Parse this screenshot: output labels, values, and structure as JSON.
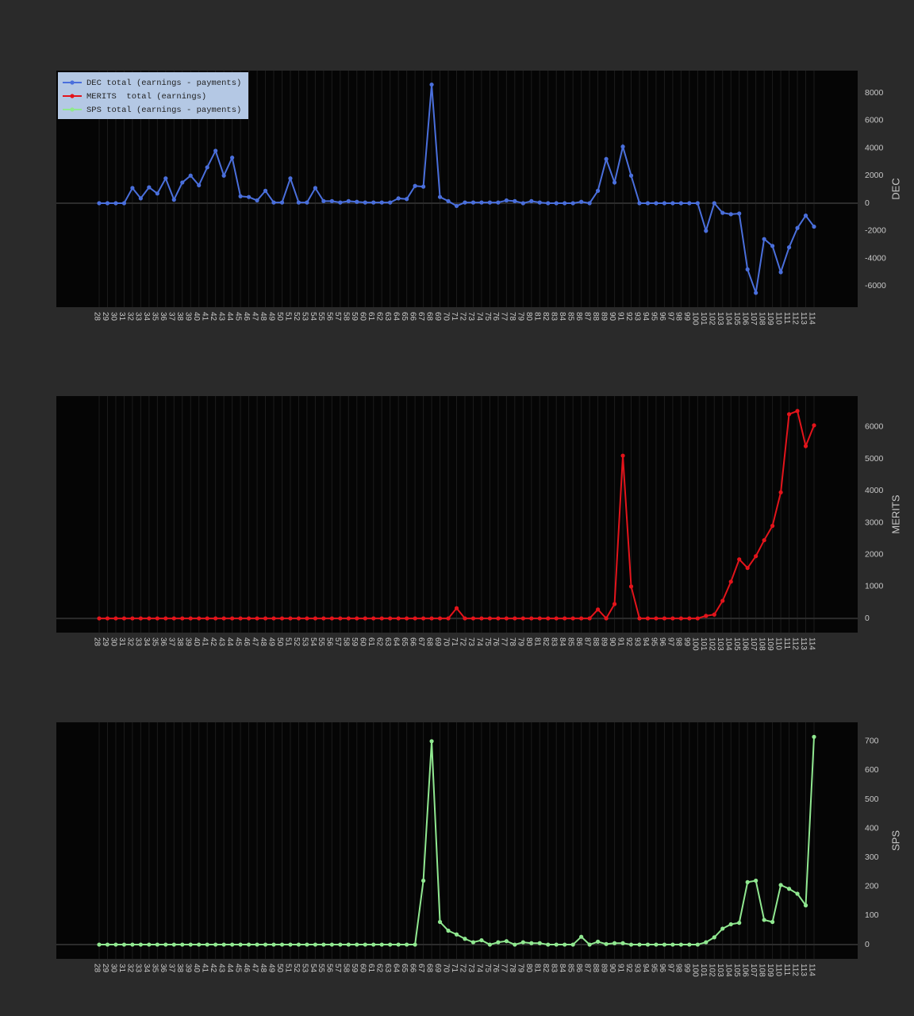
{
  "chart_data": [
    {
      "type": "line",
      "legend": "upper left",
      "y_label": "DEC",
      "categories": [
        "28",
        "29",
        "30",
        "31",
        "32",
        "33",
        "34",
        "35",
        "36",
        "37",
        "38",
        "39",
        "40",
        "41",
        "42",
        "43",
        "44",
        "45",
        "46",
        "47",
        "48",
        "49",
        "50",
        "51",
        "52",
        "53",
        "54",
        "55",
        "56",
        "57",
        "58",
        "59",
        "60",
        "61",
        "62",
        "63",
        "64",
        "65",
        "66",
        "67",
        "68",
        "69",
        "70",
        "71",
        "72",
        "73",
        "74",
        "75",
        "76",
        "77",
        "78",
        "79",
        "80",
        "81",
        "82",
        "83",
        "84",
        "85",
        "86",
        "87",
        "88",
        "89",
        "90",
        "91",
        "92",
        "93",
        "94",
        "95",
        "96",
        "97",
        "98",
        "99",
        "100",
        "101",
        "102",
        "103",
        "104",
        "105",
        "106",
        "107",
        "108",
        "109",
        "110",
        "111",
        "112",
        "113",
        "114"
      ],
      "series": [
        {
          "name": "DEC total (earnings - payments)",
          "color": "#4a6fdc",
          "values": [
            0,
            0,
            0,
            0,
            1100,
            350,
            1150,
            700,
            1800,
            250,
            1500,
            2000,
            1300,
            2600,
            3800,
            2000,
            3300,
            500,
            450,
            200,
            900,
            50,
            50,
            1800,
            50,
            50,
            1100,
            150,
            150,
            50,
            150,
            100,
            50,
            50,
            50,
            50,
            350,
            300,
            1250,
            1200,
            8600,
            450,
            150,
            -200,
            50,
            50,
            50,
            50,
            50,
            200,
            150,
            0,
            150,
            50,
            0,
            0,
            0,
            0,
            100,
            0,
            900,
            3200,
            1500,
            4100,
            2000,
            0,
            0,
            0,
            0,
            0,
            0,
            0,
            0,
            -2000,
            0,
            -700,
            -800,
            -750,
            -4800,
            -6500,
            -2600,
            -3100,
            -5000,
            -3200,
            -1800,
            -900,
            -1700
          ]
        }
      ],
      "ylim": [
        -7540,
        9611
      ],
      "yticks": [
        -6000,
        -4000,
        -2000,
        0,
        2000,
        4000,
        6000,
        8000
      ]
    },
    {
      "type": "line",
      "y_label": "MERITS",
      "categories": [
        "28",
        "29",
        "30",
        "31",
        "32",
        "33",
        "34",
        "35",
        "36",
        "37",
        "38",
        "39",
        "40",
        "41",
        "42",
        "43",
        "44",
        "45",
        "46",
        "47",
        "48",
        "49",
        "50",
        "51",
        "52",
        "53",
        "54",
        "55",
        "56",
        "57",
        "58",
        "59",
        "60",
        "61",
        "62",
        "63",
        "64",
        "65",
        "66",
        "67",
        "68",
        "69",
        "70",
        "71",
        "72",
        "73",
        "74",
        "75",
        "76",
        "77",
        "78",
        "79",
        "80",
        "81",
        "82",
        "83",
        "84",
        "85",
        "86",
        "87",
        "88",
        "89",
        "90",
        "91",
        "92",
        "93",
        "94",
        "95",
        "96",
        "97",
        "98",
        "99",
        "100",
        "101",
        "102",
        "103",
        "104",
        "105",
        "106",
        "107",
        "108",
        "109",
        "110",
        "111",
        "112",
        "113",
        "114"
      ],
      "series": [
        {
          "name": "MERITS  total (earnings)",
          "color": "#e3141b",
          "values": [
            0,
            0,
            0,
            0,
            0,
            0,
            0,
            0,
            0,
            0,
            0,
            0,
            0,
            0,
            0,
            0,
            0,
            0,
            0,
            0,
            0,
            0,
            0,
            0,
            0,
            0,
            0,
            0,
            0,
            0,
            0,
            0,
            0,
            0,
            0,
            0,
            0,
            0,
            0,
            0,
            0,
            0,
            0,
            320,
            0,
            0,
            0,
            0,
            0,
            0,
            0,
            0,
            0,
            0,
            0,
            0,
            0,
            0,
            0,
            0,
            280,
            0,
            450,
            5100,
            1000,
            0,
            0,
            0,
            0,
            0,
            0,
            0,
            0,
            80,
            120,
            550,
            1150,
            1850,
            1580,
            1950,
            2450,
            2900,
            3950,
            6400,
            6500,
            5400,
            6050
          ]
        }
      ],
      "ylim": [
        -446,
        6967
      ],
      "yticks": [
        0,
        1000,
        2000,
        3000,
        4000,
        5000,
        6000
      ]
    },
    {
      "type": "line",
      "y_label": "SPS",
      "categories": [
        "28",
        "29",
        "30",
        "31",
        "32",
        "33",
        "34",
        "35",
        "36",
        "37",
        "38",
        "39",
        "40",
        "41",
        "42",
        "43",
        "44",
        "45",
        "46",
        "47",
        "48",
        "49",
        "50",
        "51",
        "52",
        "53",
        "54",
        "55",
        "56",
        "57",
        "58",
        "59",
        "60",
        "61",
        "62",
        "63",
        "64",
        "65",
        "66",
        "67",
        "68",
        "69",
        "70",
        "71",
        "72",
        "73",
        "74",
        "75",
        "76",
        "77",
        "78",
        "79",
        "80",
        "81",
        "82",
        "83",
        "84",
        "85",
        "86",
        "87",
        "88",
        "89",
        "90",
        "91",
        "92",
        "93",
        "94",
        "95",
        "96",
        "97",
        "98",
        "99",
        "100",
        "101",
        "102",
        "103",
        "104",
        "105",
        "106",
        "107",
        "108",
        "109",
        "110",
        "111",
        "112",
        "113",
        "114"
      ],
      "series": [
        {
          "name": "SPS total (earnings - payments)",
          "color": "#90e890",
          "values": [
            0,
            0,
            0,
            0,
            0,
            0,
            0,
            0,
            0,
            0,
            0,
            0,
            0,
            0,
            0,
            0,
            0,
            0,
            0,
            0,
            0,
            0,
            0,
            0,
            0,
            0,
            0,
            0,
            0,
            0,
            0,
            0,
            0,
            0,
            0,
            0,
            0,
            0,
            0,
            220,
            700,
            78,
            48,
            35,
            20,
            8,
            15,
            0,
            8,
            12,
            0,
            8,
            5,
            5,
            0,
            0,
            0,
            0,
            27,
            0,
            10,
            2,
            5,
            5,
            0,
            0,
            0,
            0,
            0,
            0,
            0,
            0,
            0,
            8,
            25,
            55,
            70,
            75,
            215,
            220,
            85,
            78,
            205,
            192,
            175,
            135,
            715
          ]
        }
      ],
      "ylim": [
        -49,
        765
      ],
      "yticks": [
        0,
        100,
        200,
        300,
        400,
        500,
        600,
        700
      ]
    }
  ]
}
